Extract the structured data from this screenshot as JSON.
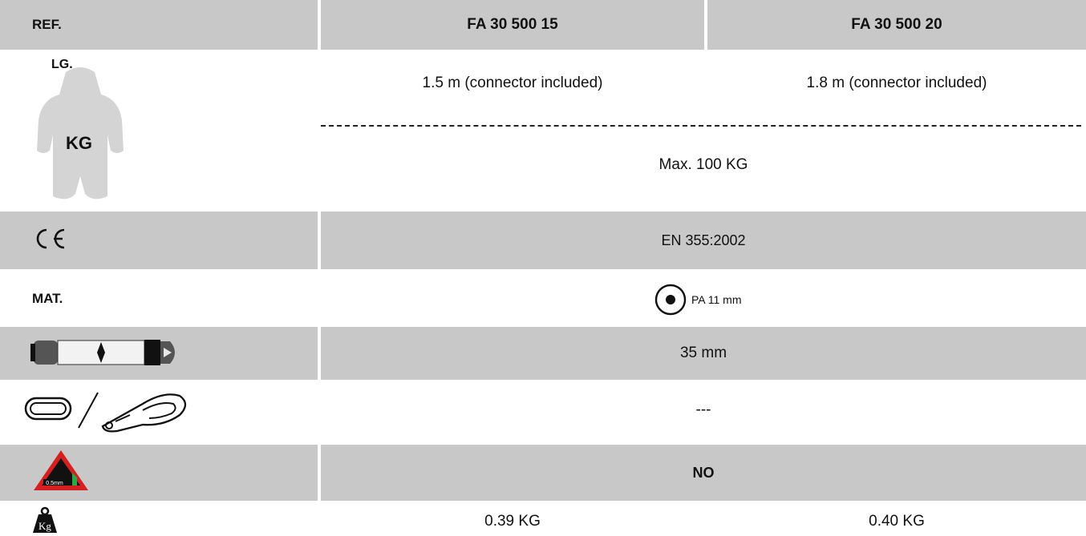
{
  "header": {
    "ref_label": "REF.",
    "models": [
      "FA 30 500 15",
      "FA 30 500 20"
    ]
  },
  "length": {
    "icon_label": "LG.",
    "values": [
      "1.5 m (connector included)",
      "1.8 m (connector included)"
    ]
  },
  "weight_capacity": {
    "icon_label": "KG",
    "value": "Max. 100 KG"
  },
  "standard": {
    "icon": "ce-mark-icon",
    "value": "EN 355:2002"
  },
  "material": {
    "label": "MAT.",
    "icon": "rope-section-icon",
    "value": "PA 11 mm"
  },
  "webbing": {
    "icon": "webbing-width-icon",
    "value": "35 mm"
  },
  "connectors": {
    "icon": "carabiner-snaphook-icon",
    "value": "---"
  },
  "edge_tested": {
    "icon": "sharp-edge-warning-icon",
    "icon_text": "0.5mm",
    "value": "NO"
  },
  "product_weight": {
    "icon": "weight-kg-icon",
    "icon_text": "Kg",
    "values": [
      "0.39 KG",
      "0.40 KG"
    ]
  },
  "colors": {
    "band": "#c8c8c8",
    "warning_red": "#d62020",
    "warning_green": "#2aa84a"
  }
}
